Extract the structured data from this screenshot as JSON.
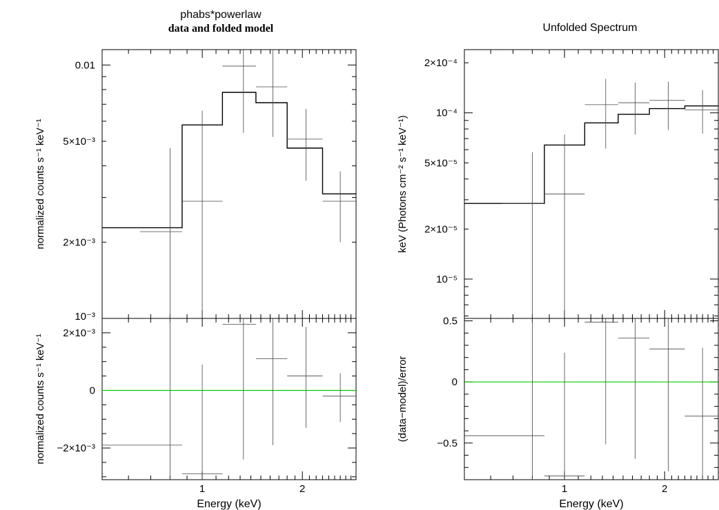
{
  "chart_data": [
    {
      "type": "line",
      "title": "phabs*powerlaw",
      "subtitle": "data and folded model",
      "xlabel": "Energy (keV)",
      "ylabel": "normalized counts s⁻¹ keV⁻¹",
      "x_scale": "log",
      "y_scale": "log",
      "xlim": [
        0.5,
        2.9
      ],
      "ylim": [
        0.001,
        0.0115
      ],
      "ytick_labels": [
        {
          "value": 0.01,
          "label": "0.01"
        },
        {
          "value": 0.005,
          "label": "5×10⁻³"
        },
        {
          "value": 0.002,
          "label": "2×10⁻³"
        },
        {
          "value": 0.001,
          "label": "10⁻³"
        }
      ],
      "data_points": [
        {
          "x": 0.8,
          "xlo": 0.65,
          "xhi": 0.87,
          "y": 0.0022,
          "ylo": 0.001,
          "yhi": 0.0047
        },
        {
          "x": 1.0,
          "xlo": 0.87,
          "xhi": 1.15,
          "y": 0.0029,
          "ylo": 0.001,
          "yhi": 0.0066
        },
        {
          "x": 1.33,
          "xlo": 1.15,
          "xhi": 1.45,
          "y": 0.0099,
          "ylo": 0.0054,
          "yhi": 0.0115
        },
        {
          "x": 1.63,
          "xlo": 1.45,
          "xhi": 1.8,
          "y": 0.0082,
          "ylo": 0.0052,
          "yhi": 0.0115
        },
        {
          "x": 2.05,
          "xlo": 1.8,
          "xhi": 2.3,
          "y": 0.0051,
          "ylo": 0.0035,
          "yhi": 0.0067
        },
        {
          "x": 2.6,
          "xlo": 2.3,
          "xhi": 2.9,
          "y": 0.0029,
          "ylo": 0.002,
          "yhi": 0.0038
        }
      ],
      "model_step": {
        "edges": [
          0.5,
          0.87,
          1.15,
          1.45,
          1.8,
          2.3,
          2.9
        ],
        "values": [
          0.00228,
          0.0058,
          0.0078,
          0.0071,
          0.0047,
          0.0031
        ]
      }
    },
    {
      "type": "scatter",
      "xlabel": "Energy (keV)",
      "ylabel": "normalized counts s⁻¹ keV⁻¹",
      "x_scale": "log",
      "xlim": [
        0.5,
        2.9
      ],
      "ylim": [
        -0.0031,
        0.0025
      ],
      "ytick_labels": [
        {
          "value": 0.002,
          "label": "2×10⁻³"
        },
        {
          "value": 0,
          "label": "0"
        },
        {
          "value": -0.002,
          "label": "−2×10⁻³"
        }
      ],
      "xtick_labels": [
        {
          "value": 1,
          "label": "1"
        },
        {
          "value": 2,
          "label": "2"
        }
      ],
      "zero_line_color": "#00cc00",
      "data_points": [
        {
          "x": 0.8,
          "xlo": 0.5,
          "xhi": 0.87,
          "y": -0.0019,
          "ylo": -0.0031,
          "yhi": 0.0025
        },
        {
          "x": 1.0,
          "xlo": 0.87,
          "xhi": 1.15,
          "y": -0.0029,
          "ylo": -0.0031,
          "yhi": 0.0009
        },
        {
          "x": 1.33,
          "xlo": 1.15,
          "xhi": 1.45,
          "y": 0.0023,
          "ylo": -0.0024,
          "yhi": 0.0025
        },
        {
          "x": 1.63,
          "xlo": 1.45,
          "xhi": 1.8,
          "y": 0.0011,
          "ylo": -0.0019,
          "yhi": 0.0025
        },
        {
          "x": 2.05,
          "xlo": 1.8,
          "xhi": 2.3,
          "y": 0.0005,
          "ylo": -0.0013,
          "yhi": 0.0022
        },
        {
          "x": 2.6,
          "xlo": 2.3,
          "xhi": 2.9,
          "y": -0.0002,
          "ylo": -0.0011,
          "yhi": 0.0006
        }
      ]
    },
    {
      "type": "line",
      "title": "Unfolded Spectrum",
      "xlabel": "Energy (keV)",
      "ylabel": "keV (Photons cm⁻² s⁻¹ keV⁻¹)",
      "x_scale": "log",
      "y_scale": "log",
      "xlim": [
        0.5,
        2.9
      ],
      "ylim": [
        5.8e-06,
        0.00024
      ],
      "ytick_labels": [
        {
          "value": 0.0002,
          "label": "2×10⁻⁴"
        },
        {
          "value": 0.0001,
          "label": "10⁻⁴"
        },
        {
          "value": 5e-05,
          "label": "5×10⁻⁵"
        },
        {
          "value": 2e-05,
          "label": "2×10⁻⁵"
        },
        {
          "value": 1e-05,
          "label": "10⁻⁵"
        }
      ],
      "data_points": [
        {
          "x": 0.8,
          "xlo": 0.65,
          "xhi": 0.87,
          "y": 2.85e-05,
          "ylo": 5.8e-06,
          "yhi": 5.8e-05
        },
        {
          "x": 1.0,
          "xlo": 0.87,
          "xhi": 1.15,
          "y": 3.25e-05,
          "ylo": 5.8e-06,
          "yhi": 7.4e-05
        },
        {
          "x": 1.33,
          "xlo": 1.15,
          "xhi": 1.45,
          "y": 0.000112,
          "ylo": 6.1e-05,
          "yhi": 0.00016
        },
        {
          "x": 1.63,
          "xlo": 1.45,
          "xhi": 1.8,
          "y": 0.000115,
          "ylo": 7.4e-05,
          "yhi": 0.000152
        },
        {
          "x": 2.05,
          "xlo": 1.8,
          "xhi": 2.3,
          "y": 0.000119,
          "ylo": 7.9e-05,
          "yhi": 0.000154
        },
        {
          "x": 2.6,
          "xlo": 2.3,
          "xhi": 2.9,
          "y": 0.000104,
          "ylo": 7.5e-05,
          "yhi": 0.000137
        }
      ],
      "model_step": {
        "edges": [
          0.5,
          0.87,
          1.15,
          1.45,
          1.8,
          2.3,
          2.9
        ],
        "values": [
          2.85e-05,
          6.4e-05,
          8.7e-05,
          9.8e-05,
          0.000106,
          0.00011
        ]
      }
    },
    {
      "type": "scatter",
      "xlabel": "Energy (keV)",
      "ylabel": "(data−model)/error",
      "x_scale": "log",
      "xlim": [
        0.5,
        2.9
      ],
      "ylim": [
        -0.8,
        0.52
      ],
      "ytick_labels": [
        {
          "value": 0.5,
          "label": "0.5"
        },
        {
          "value": 0,
          "label": "0"
        },
        {
          "value": -0.5,
          "label": "−0.5"
        }
      ],
      "xtick_labels": [
        {
          "value": 1,
          "label": "1"
        },
        {
          "value": 2,
          "label": "2"
        }
      ],
      "zero_line_color": "#00cc00",
      "data_points": [
        {
          "x": 0.8,
          "xlo": 0.5,
          "xhi": 0.87,
          "y": -0.44,
          "ylo": -0.8,
          "yhi": 0.52
        },
        {
          "x": 1.0,
          "xlo": 0.87,
          "xhi": 1.15,
          "y": -0.77,
          "ylo": -0.8,
          "yhi": 0.24
        },
        {
          "x": 1.33,
          "xlo": 1.15,
          "xhi": 1.45,
          "y": 0.49,
          "ylo": -0.51,
          "yhi": 0.52
        },
        {
          "x": 1.63,
          "xlo": 1.45,
          "xhi": 1.8,
          "y": 0.36,
          "ylo": -0.63,
          "yhi": 0.52
        },
        {
          "x": 2.05,
          "xlo": 1.8,
          "xhi": 2.3,
          "y": 0.27,
          "ylo": -0.73,
          "yhi": 0.52
        },
        {
          "x": 2.6,
          "xlo": 2.3,
          "xhi": 2.9,
          "y": -0.28,
          "ylo": -0.8,
          "yhi": 0.28
        }
      ]
    }
  ]
}
